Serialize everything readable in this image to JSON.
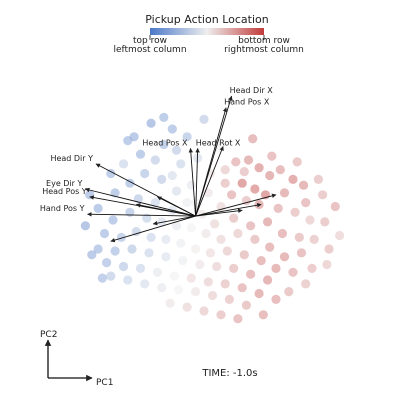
{
  "chart_data": {
    "type": "scatter",
    "title": "",
    "colorbar": {
      "title": "Pickup Action Location",
      "low_label_line1": "top row",
      "low_label_line2": "leftmost column",
      "high_label_line1": "bottom row",
      "high_label_line2": "rightmost column",
      "low_color": "#4b78c8",
      "mid_color": "#eeeeee",
      "high_color": "#c23a3a"
    },
    "axes": {
      "xlabel": "PC1",
      "ylabel": "PC2"
    },
    "time_label": "TIME: -1.0s",
    "xlim": [
      -3.2,
      4.0
    ],
    "ylim": [
      -3.2,
      3.0
    ],
    "vectors": [
      {
        "label": "Head Dir X",
        "x": 0.85,
        "y": 3.1
      },
      {
        "label": "Hand Pos X",
        "x": 0.72,
        "y": 2.8
      },
      {
        "label": "Head Rot X",
        "x": 0.05,
        "y": 1.75
      },
      {
        "label": "Head Pos X",
        "x": -0.12,
        "y": 1.75
      },
      {
        "label": "Head Dir Y",
        "x": -2.35,
        "y": 1.35
      },
      {
        "label": "Eye Dir Y",
        "x": -2.6,
        "y": 0.7
      },
      {
        "label": "Head Pos Y",
        "x": -2.5,
        "y": 0.5
      },
      {
        "label": "Hand Pos Y",
        "x": -2.55,
        "y": 0.05
      },
      {
        "label": "",
        "x": 1.9,
        "y": 0.55
      },
      {
        "label": "",
        "x": 1.55,
        "y": 0.3
      },
      {
        "label": "",
        "x": 0.65,
        "y": 1.8
      },
      {
        "label": "",
        "x": -2.0,
        "y": -0.65
      },
      {
        "label": "",
        "x": -1.4,
        "y": 0.3
      },
      {
        "label": "",
        "x": -0.9,
        "y": 0.5
      },
      {
        "label": "",
        "x": 1.1,
        "y": 0.15
      },
      {
        "label": "",
        "x": -1.0,
        "y": -0.2
      }
    ],
    "points": [
      {
        "x": -1.05,
        "y": 2.4,
        "c": 0.15
      },
      {
        "x": -0.55,
        "y": 2.25,
        "c": 0.2
      },
      {
        "x": -1.45,
        "y": 2.05,
        "c": 0.18
      },
      {
        "x": -0.2,
        "y": 2.05,
        "c": 0.25
      },
      {
        "x": -0.75,
        "y": 1.85,
        "c": 0.22
      },
      {
        "x": -1.3,
        "y": 1.6,
        "c": 0.2
      },
      {
        "x": -0.95,
        "y": 1.45,
        "c": 0.3
      },
      {
        "x": -0.35,
        "y": 1.35,
        "c": 0.35
      },
      {
        "x": 0.05,
        "y": 1.5,
        "c": 0.4
      },
      {
        "x": -1.7,
        "y": 1.35,
        "c": 0.35
      },
      {
        "x": -0.55,
        "y": 1.05,
        "c": 0.4
      },
      {
        "x": 0.35,
        "y": 1.1,
        "c": 0.55
      },
      {
        "x": 0.7,
        "y": 1.2,
        "c": 0.65
      },
      {
        "x": 0.95,
        "y": 1.4,
        "c": 0.75
      },
      {
        "x": 1.15,
        "y": 1.15,
        "c": 0.7
      },
      {
        "x": 1.25,
        "y": 1.45,
        "c": 0.8
      },
      {
        "x": 1.5,
        "y": 1.25,
        "c": 0.85
      },
      {
        "x": 1.75,
        "y": 1.05,
        "c": 0.82
      },
      {
        "x": 2.0,
        "y": 1.2,
        "c": 0.78
      },
      {
        "x": 2.3,
        "y": 0.95,
        "c": 0.85
      },
      {
        "x": 2.55,
        "y": 0.8,
        "c": 0.8
      },
      {
        "x": 1.1,
        "y": 0.85,
        "c": 0.9
      },
      {
        "x": 1.4,
        "y": 0.7,
        "c": 0.88
      },
      {
        "x": 1.65,
        "y": 0.55,
        "c": 0.9
      },
      {
        "x": 0.85,
        "y": 0.55,
        "c": 0.75
      },
      {
        "x": 2.1,
        "y": 0.6,
        "c": 0.8
      },
      {
        "x": 2.6,
        "y": 0.35,
        "c": 0.75
      },
      {
        "x": 3.0,
        "y": 0.55,
        "c": 0.7
      },
      {
        "x": 3.3,
        "y": 0.25,
        "c": 0.75
      },
      {
        "x": 3.05,
        "y": -0.15,
        "c": 0.7
      },
      {
        "x": 2.7,
        "y": -0.1,
        "c": 0.65
      },
      {
        "x": 2.35,
        "y": 0.1,
        "c": 0.7
      },
      {
        "x": 1.95,
        "y": 0.2,
        "c": 0.75
      },
      {
        "x": 1.5,
        "y": 0.3,
        "c": 0.8
      },
      {
        "x": 1.2,
        "y": 0.4,
        "c": 0.7
      },
      {
        "x": 0.6,
        "y": 0.25,
        "c": 0.6
      },
      {
        "x": 0.3,
        "y": 0.6,
        "c": 0.55
      },
      {
        "x": -0.1,
        "y": 0.8,
        "c": 0.45
      },
      {
        "x": -0.45,
        "y": 0.65,
        "c": 0.4
      },
      {
        "x": -0.8,
        "y": 0.95,
        "c": 0.3
      },
      {
        "x": -1.2,
        "y": 1.1,
        "c": 0.25
      },
      {
        "x": -1.55,
        "y": 0.85,
        "c": 0.2
      },
      {
        "x": -1.9,
        "y": 0.6,
        "c": 0.2
      },
      {
        "x": -1.35,
        "y": 0.45,
        "c": 0.28
      },
      {
        "x": -0.95,
        "y": 0.35,
        "c": 0.35
      },
      {
        "x": -0.55,
        "y": 0.15,
        "c": 0.42
      },
      {
        "x": -0.2,
        "y": 0.35,
        "c": 0.48
      },
      {
        "x": 0.15,
        "y": 0.05,
        "c": 0.55
      },
      {
        "x": 0.45,
        "y": -0.2,
        "c": 0.6
      },
      {
        "x": 0.9,
        "y": -0.05,
        "c": 0.7
      },
      {
        "x": 1.3,
        "y": -0.25,
        "c": 0.75
      },
      {
        "x": 1.7,
        "y": -0.15,
        "c": 0.8
      },
      {
        "x": 2.05,
        "y": -0.45,
        "c": 0.78
      },
      {
        "x": 2.45,
        "y": -0.55,
        "c": 0.72
      },
      {
        "x": 2.8,
        "y": -0.6,
        "c": 0.68
      },
      {
        "x": 3.15,
        "y": -0.85,
        "c": 0.7
      },
      {
        "x": 2.5,
        "y": -0.95,
        "c": 0.75
      },
      {
        "x": 2.1,
        "y": -1.05,
        "c": 0.8
      },
      {
        "x": 1.75,
        "y": -0.8,
        "c": 0.78
      },
      {
        "x": 1.4,
        "y": -0.6,
        "c": 0.72
      },
      {
        "x": 1.0,
        "y": -0.45,
        "c": 0.65
      },
      {
        "x": 0.6,
        "y": -0.6,
        "c": 0.6
      },
      {
        "x": 0.25,
        "y": -0.45,
        "c": 0.55
      },
      {
        "x": -0.1,
        "y": -0.3,
        "c": 0.5
      },
      {
        "x": -0.45,
        "y": -0.25,
        "c": 0.45
      },
      {
        "x": -0.8,
        "y": -0.15,
        "c": 0.4
      },
      {
        "x": -1.15,
        "y": -0.05,
        "c": 0.32
      },
      {
        "x": -1.55,
        "y": 0.1,
        "c": 0.25
      },
      {
        "x": -1.95,
        "y": -0.1,
        "c": 0.2
      },
      {
        "x": -2.3,
        "y": 0.2,
        "c": 0.18
      },
      {
        "x": -2.15,
        "y": -0.45,
        "c": 0.2
      },
      {
        "x": -1.75,
        "y": -0.55,
        "c": 0.25
      },
      {
        "x": -1.4,
        "y": -0.4,
        "c": 0.3
      },
      {
        "x": -1.05,
        "y": -0.55,
        "c": 0.35
      },
      {
        "x": -0.7,
        "y": -0.6,
        "c": 0.42
      },
      {
        "x": -0.35,
        "y": -0.7,
        "c": 0.48
      },
      {
        "x": 0.0,
        "y": -0.85,
        "c": 0.52
      },
      {
        "x": 0.35,
        "y": -0.95,
        "c": 0.58
      },
      {
        "x": 0.75,
        "y": -0.9,
        "c": 0.65
      },
      {
        "x": 1.15,
        "y": -1.0,
        "c": 0.72
      },
      {
        "x": 1.55,
        "y": -1.15,
        "c": 0.78
      },
      {
        "x": 1.9,
        "y": -1.35,
        "c": 0.8
      },
      {
        "x": 2.3,
        "y": -1.45,
        "c": 0.75
      },
      {
        "x": 2.75,
        "y": -1.35,
        "c": 0.7
      },
      {
        "x": 1.7,
        "y": -1.65,
        "c": 0.82
      },
      {
        "x": 1.3,
        "y": -1.5,
        "c": 0.78
      },
      {
        "x": 0.9,
        "y": -1.35,
        "c": 0.7
      },
      {
        "x": 0.5,
        "y": -1.3,
        "c": 0.62
      },
      {
        "x": 0.1,
        "y": -1.25,
        "c": 0.55
      },
      {
        "x": -0.3,
        "y": -1.15,
        "c": 0.48
      },
      {
        "x": -0.7,
        "y": -1.05,
        "c": 0.42
      },
      {
        "x": -1.1,
        "y": -0.95,
        "c": 0.35
      },
      {
        "x": -1.5,
        "y": -0.85,
        "c": 0.28
      },
      {
        "x": -1.9,
        "y": -0.9,
        "c": 0.22
      },
      {
        "x": -2.3,
        "y": -0.85,
        "c": 0.2
      },
      {
        "x": -2.1,
        "y": -1.2,
        "c": 0.22
      },
      {
        "x": -1.7,
        "y": -1.3,
        "c": 0.28
      },
      {
        "x": -1.3,
        "y": -1.35,
        "c": 0.35
      },
      {
        "x": -0.9,
        "y": -1.45,
        "c": 0.45
      },
      {
        "x": -0.5,
        "y": -1.55,
        "c": 0.5
      },
      {
        "x": -0.1,
        "y": -1.6,
        "c": 0.58
      },
      {
        "x": 0.3,
        "y": -1.7,
        "c": 0.62
      },
      {
        "x": 0.7,
        "y": -1.75,
        "c": 0.68
      },
      {
        "x": 1.1,
        "y": -1.85,
        "c": 0.75
      },
      {
        "x": 1.5,
        "y": -2.0,
        "c": 0.8
      },
      {
        "x": 1.9,
        "y": -2.15,
        "c": 0.78
      },
      {
        "x": 1.2,
        "y": -2.3,
        "c": 0.72
      },
      {
        "x": 0.8,
        "y": -2.15,
        "c": 0.68
      },
      {
        "x": 0.4,
        "y": -2.05,
        "c": 0.62
      },
      {
        "x": 0.0,
        "y": -1.95,
        "c": 0.55
      },
      {
        "x": -0.4,
        "y": -1.9,
        "c": 0.5
      },
      {
        "x": -0.8,
        "y": -1.85,
        "c": 0.45
      },
      {
        "x": -1.2,
        "y": -1.75,
        "c": 0.4
      },
      {
        "x": -1.6,
        "y": -1.65,
        "c": 0.35
      },
      {
        "x": -2.0,
        "y": -1.55,
        "c": 0.3
      },
      {
        "x": -0.6,
        "y": -2.25,
        "c": 0.55
      },
      {
        "x": -0.2,
        "y": -2.35,
        "c": 0.6
      },
      {
        "x": 0.2,
        "y": -2.45,
        "c": 0.65
      },
      {
        "x": 0.6,
        "y": -2.55,
        "c": 0.7
      },
      {
        "x": 1.0,
        "y": -2.65,
        "c": 0.75
      },
      {
        "x": 1.6,
        "y": -2.55,
        "c": 0.78
      },
      {
        "x": 2.2,
        "y": -1.95,
        "c": 0.72
      },
      {
        "x": 2.6,
        "y": -1.75,
        "c": 0.68
      },
      {
        "x": 3.1,
        "y": -1.25,
        "c": 0.65
      },
      {
        "x": 3.4,
        "y": -0.5,
        "c": 0.62
      },
      {
        "x": 2.9,
        "y": 0.95,
        "c": 0.7
      },
      {
        "x": 2.4,
        "y": 1.4,
        "c": 0.72
      },
      {
        "x": 1.8,
        "y": 1.55,
        "c": 0.75
      },
      {
        "x": 0.55,
        "y": 1.75,
        "c": 0.5
      },
      {
        "x": -0.45,
        "y": 1.7,
        "c": 0.3
      },
      {
        "x": -1.6,
        "y": 1.95,
        "c": 0.2
      },
      {
        "x": -2.0,
        "y": 1.1,
        "c": 0.2
      },
      {
        "x": -2.5,
        "y": 0.55,
        "c": 0.18
      },
      {
        "x": -2.6,
        "y": -0.25,
        "c": 0.15
      },
      {
        "x": -2.45,
        "y": -1.0,
        "c": 0.18
      },
      {
        "x": -2.2,
        "y": -1.6,
        "c": 0.22
      },
      {
        "x": 0.0,
        "y": 0.35,
        "c": 0.5
      },
      {
        "x": 0.7,
        "y": 0.85,
        "c": 0.7
      },
      {
        "x": 1.35,
        "y": 2.0,
        "c": 0.78
      },
      {
        "x": 0.2,
        "y": 2.5,
        "c": 0.3
      },
      {
        "x": -0.75,
        "y": 2.55,
        "c": 0.2
      }
    ]
  }
}
